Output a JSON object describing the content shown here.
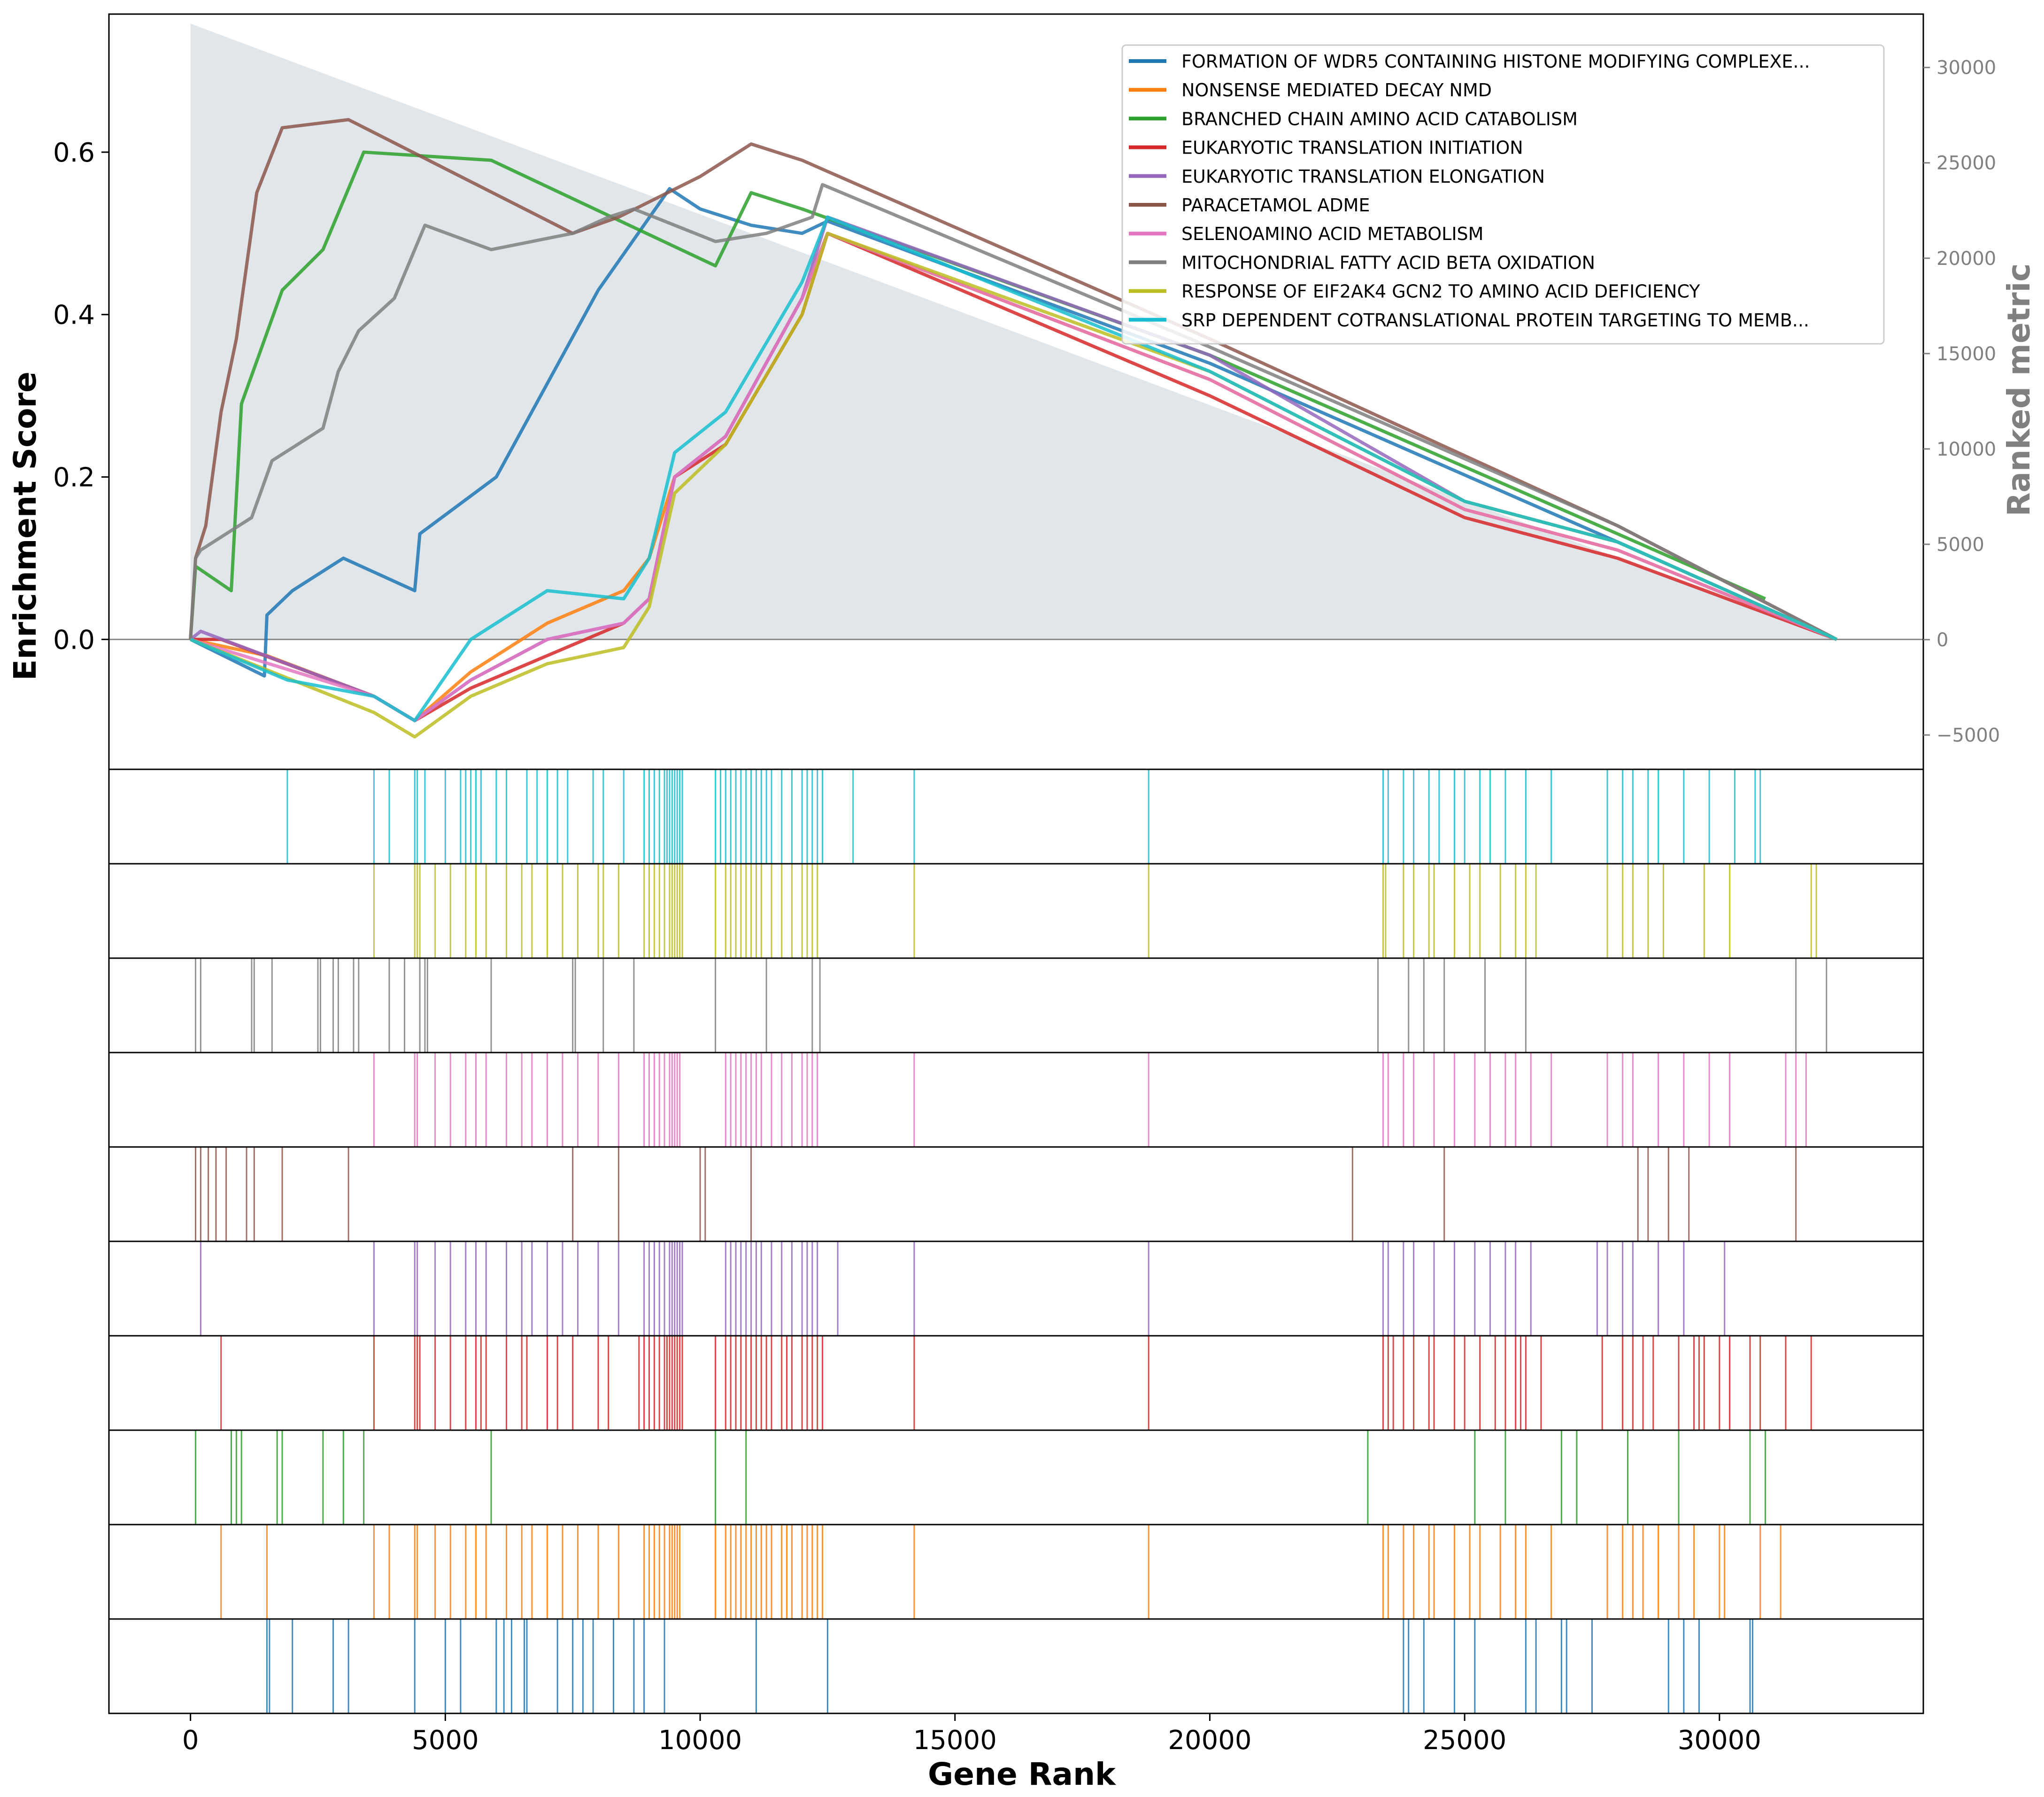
{
  "chart_data": {
    "type": "line",
    "xlabel": "Gene Rank",
    "ylabel": "Enrichment Score",
    "ylabel_right": "Ranked metric",
    "xlim": [
      -1600,
      34000
    ],
    "ylim": [
      -0.16,
      0.77
    ],
    "ylim_right": [
      -6800,
      32800
    ],
    "x_ticks": [
      0,
      5000,
      10000,
      15000,
      20000,
      25000,
      30000
    ],
    "x_tick_labels": [
      "0",
      "5000",
      "10000",
      "15000",
      "20000",
      "25000",
      "30000"
    ],
    "y_ticks": [
      0.0,
      0.2,
      0.4,
      0.6
    ],
    "y_tick_labels": [
      "0.0",
      "0.2",
      "0.4",
      "0.6"
    ],
    "y_right_ticks": [
      -5000,
      0,
      5000,
      10000,
      15000,
      20000,
      25000,
      30000
    ],
    "y_right_tick_labels": [
      "−5000",
      "0",
      "5000",
      "10000",
      "15000",
      "20000",
      "25000",
      "30000"
    ],
    "legend_position": "top-right",
    "ranked_metric": {
      "color": "#c9d1d8",
      "x": [
        0,
        32300
      ],
      "values": [
        32300,
        0
      ]
    },
    "series": [
      {
        "name": "FORMATION OF WDR5 CONTAINING HISTONE MODIFYING COMPLEXE...",
        "color": "#1f77b4",
        "es_x": [
          0,
          1450,
          1500,
          2000,
          3000,
          4400,
          4500,
          6000,
          8000,
          9400,
          10000,
          11000,
          12000,
          12500,
          20000,
          28000,
          32300
        ],
        "es_y": [
          0.0,
          -0.045,
          0.03,
          0.06,
          0.1,
          0.06,
          0.13,
          0.2,
          0.43,
          0.555,
          0.53,
          0.51,
          0.5,
          0.515,
          0.34,
          0.12,
          0.0
        ],
        "hits": [
          1500,
          1550,
          2000,
          2800,
          3100,
          4400,
          5000,
          5300,
          6000,
          6150,
          6300,
          6550,
          6600,
          7200,
          7500,
          7700,
          7900,
          8300,
          8700,
          8900,
          9300,
          11100,
          12500,
          23800,
          23900,
          24200,
          24800,
          25200,
          26200,
          26400,
          26900,
          27000,
          27500,
          29000,
          29300,
          29600,
          30600,
          30650
        ]
      },
      {
        "name": "NONSENSE MEDIATED DECAY NMD",
        "color": "#ff7f0e",
        "es_x": [
          0,
          1500,
          3600,
          4400,
          5500,
          7000,
          8500,
          9000,
          9500,
          10500,
          12000,
          12500,
          20000,
          25000,
          28000,
          32300
        ],
        "es_y": [
          0.0,
          -0.02,
          -0.07,
          -0.1,
          -0.04,
          0.02,
          0.06,
          0.1,
          0.2,
          0.25,
          0.42,
          0.5,
          0.32,
          0.16,
          0.11,
          0.0
        ],
        "hits": [
          600,
          1500,
          3600,
          3900,
          4400,
          4450,
          4800,
          5100,
          5400,
          5600,
          5800,
          6200,
          6500,
          6700,
          7000,
          7300,
          7600,
          8000,
          8400,
          8900,
          9000,
          9100,
          9200,
          9300,
          9400,
          9450,
          9500,
          9550,
          9600,
          10300,
          10500,
          10600,
          10700,
          10800,
          10900,
          11000,
          11100,
          11200,
          11300,
          11400,
          11600,
          11700,
          11800,
          12000,
          12100,
          12200,
          12300,
          12400,
          14200,
          18800,
          23400,
          23500,
          23800,
          24000,
          24300,
          24400,
          24800,
          25100,
          25300,
          25700,
          26000,
          26200,
          26700,
          27800,
          28100,
          28300,
          28500,
          28800,
          29200,
          29500,
          30000,
          30100,
          30800,
          31200
        ]
      },
      {
        "name": "BRANCHED CHAIN AMINO ACID CATABOLISM",
        "color": "#2ca02c",
        "es_x": [
          0,
          100,
          800,
          1000,
          1800,
          2600,
          3400,
          5900,
          10300,
          11000,
          12000,
          20000,
          28000,
          30900
        ],
        "es_y": [
          0.0,
          0.09,
          0.06,
          0.29,
          0.43,
          0.48,
          0.6,
          0.59,
          0.46,
          0.55,
          0.53,
          0.35,
          0.13,
          0.05
        ],
        "hits": [
          100,
          800,
          900,
          1000,
          1700,
          1800,
          2600,
          3000,
          3400,
          5900,
          10300,
          10900,
          23100,
          25200,
          25800,
          26900,
          27200,
          28200,
          29200,
          30600,
          30900
        ]
      },
      {
        "name": "EUKARYOTIC TRANSLATION INITIATION",
        "color": "#d62728",
        "es_x": [
          0,
          600,
          3600,
          4400,
          5500,
          7000,
          8500,
          9000,
          9500,
          10500,
          12000,
          12500,
          20000,
          25000,
          28000,
          32300
        ],
        "es_y": [
          0.0,
          0.0,
          -0.07,
          -0.1,
          -0.06,
          -0.02,
          0.02,
          0.05,
          0.2,
          0.24,
          0.4,
          0.5,
          0.3,
          0.15,
          0.1,
          0.0
        ],
        "hits": [
          600,
          3600,
          4400,
          4450,
          4500,
          4800,
          5100,
          5400,
          5600,
          5700,
          5800,
          6200,
          6500,
          6600,
          7000,
          7200,
          7500,
          8000,
          8200,
          8800,
          8900,
          9000,
          9100,
          9200,
          9300,
          9350,
          9400,
          9450,
          9500,
          9550,
          9600,
          9650,
          10300,
          10500,
          10600,
          10700,
          10800,
          10900,
          11000,
          11100,
          11200,
          11300,
          11400,
          11600,
          11700,
          11800,
          12000,
          12100,
          12200,
          12300,
          12400,
          14200,
          18800,
          23400,
          23500,
          23600,
          23800,
          24000,
          24300,
          24400,
          24800,
          25000,
          25300,
          25600,
          25800,
          26000,
          26100,
          26200,
          26500,
          27700,
          28100,
          28300,
          28500,
          28700,
          29200,
          29500,
          29600,
          29700,
          30000,
          30200,
          30600,
          30800,
          31300,
          31800
        ]
      },
      {
        "name": "EUKARYOTIC TRANSLATION ELONGATION",
        "color": "#9467bd",
        "es_x": [
          0,
          200,
          3600,
          4400,
          5500,
          7000,
          8500,
          9000,
          9500,
          10500,
          12000,
          12500,
          20000,
          25000,
          28000,
          32300
        ],
        "es_y": [
          0.0,
          0.01,
          -0.07,
          -0.1,
          -0.05,
          0.0,
          0.02,
          0.05,
          0.2,
          0.25,
          0.42,
          0.52,
          0.35,
          0.17,
          0.12,
          0.0
        ],
        "hits": [
          200,
          3600,
          4400,
          4450,
          4800,
          5100,
          5400,
          5600,
          5800,
          6200,
          6500,
          6700,
          7000,
          7300,
          7600,
          8000,
          8400,
          8900,
          9000,
          9100,
          9200,
          9300,
          9400,
          9450,
          9500,
          9550,
          9600,
          9650,
          10500,
          10600,
          10700,
          10800,
          10900,
          11000,
          11100,
          11200,
          11400,
          11600,
          11800,
          12000,
          12100,
          12200,
          12300,
          12700,
          14200,
          18800,
          23400,
          23500,
          23800,
          24000,
          24400,
          24800,
          25200,
          25500,
          25800,
          26000,
          26300,
          27600,
          27800,
          28100,
          28300,
          28800,
          29300,
          30100
        ]
      },
      {
        "name": "PARACETAMOL ADME",
        "color": "#8c564b",
        "es_x": [
          0,
          100,
          300,
          600,
          900,
          1300,
          1800,
          3100,
          7500,
          8400,
          10000,
          11000,
          12000,
          20000,
          28000,
          32300
        ],
        "es_y": [
          0.0,
          0.1,
          0.14,
          0.28,
          0.37,
          0.55,
          0.63,
          0.64,
          0.5,
          0.52,
          0.57,
          0.61,
          0.59,
          0.37,
          0.14,
          0.0
        ],
        "hits": [
          100,
          200,
          350,
          500,
          700,
          1100,
          1250,
          1800,
          3100,
          7500,
          8400,
          10000,
          10100,
          11000,
          22800,
          24600,
          28400,
          28600,
          29000,
          29400,
          31500
        ]
      },
      {
        "name": "SELENOAMINO ACID METABOLISM",
        "color": "#e377c2",
        "es_x": [
          0,
          3600,
          4400,
          5500,
          7000,
          8500,
          9000,
          9500,
          10500,
          12000,
          12500,
          20000,
          25000,
          28000,
          32300
        ],
        "es_y": [
          0.0,
          -0.07,
          -0.1,
          -0.05,
          0.0,
          0.02,
          0.05,
          0.2,
          0.25,
          0.42,
          0.5,
          0.32,
          0.16,
          0.11,
          0.0
        ],
        "hits": [
          3600,
          4400,
          4450,
          4800,
          5100,
          5400,
          5600,
          5800,
          6200,
          6500,
          6700,
          7000,
          7300,
          7600,
          8000,
          8400,
          8900,
          9000,
          9100,
          9200,
          9300,
          9400,
          9450,
          9500,
          9550,
          9600,
          10500,
          10600,
          10700,
          10800,
          10900,
          11000,
          11100,
          11200,
          11400,
          11600,
          11800,
          12000,
          12100,
          12200,
          12300,
          14200,
          18800,
          23400,
          23500,
          23800,
          24000,
          24400,
          24800,
          25200,
          25500,
          25800,
          26000,
          26300,
          26700,
          27800,
          28100,
          28300,
          28800,
          29300,
          29800,
          30200,
          31300,
          31500,
          31700
        ]
      },
      {
        "name": "MITOCHONDRIAL FATTY ACID BETA OXIDATION",
        "color": "#7f7f7f",
        "es_x": [
          0,
          100,
          200,
          1200,
          1600,
          2600,
          2900,
          3300,
          4000,
          4600,
          5900,
          7500,
          8200,
          8700,
          10300,
          11300,
          12200,
          12400,
          20000,
          28000,
          32300
        ],
        "es_y": [
          0.0,
          0.1,
          0.11,
          0.15,
          0.22,
          0.26,
          0.33,
          0.38,
          0.42,
          0.51,
          0.48,
          0.5,
          0.52,
          0.53,
          0.49,
          0.5,
          0.52,
          0.56,
          0.36,
          0.14,
          0.0
        ],
        "hits": [
          100,
          200,
          1200,
          1250,
          1600,
          2500,
          2550,
          2800,
          2900,
          3200,
          3300,
          3900,
          4200,
          4500,
          4600,
          4650,
          5900,
          7500,
          7550,
          8100,
          8700,
          10300,
          11300,
          12200,
          12350,
          23300,
          23900,
          24200,
          24600,
          25400,
          26200,
          31500,
          32100
        ]
      },
      {
        "name": "RESPONSE OF EIF2AK4 GCN2 TO AMINO ACID DEFICIENCY",
        "color": "#bcbd22",
        "es_x": [
          0,
          3600,
          4400,
          5500,
          7000,
          8500,
          9000,
          9500,
          10500,
          12000,
          12500,
          20000,
          25000,
          28000,
          32300
        ],
        "es_y": [
          0.0,
          -0.09,
          -0.12,
          -0.07,
          -0.03,
          -0.01,
          0.04,
          0.18,
          0.24,
          0.4,
          0.5,
          0.33,
          0.17,
          0.12,
          0.0
        ],
        "hits": [
          3600,
          4400,
          4450,
          4500,
          4800,
          5100,
          5400,
          5600,
          5800,
          6200,
          6500,
          6700,
          7000,
          7300,
          7600,
          8000,
          8100,
          8400,
          8900,
          9000,
          9100,
          9200,
          9300,
          9400,
          9450,
          9500,
          9550,
          9600,
          9650,
          10300,
          10500,
          10600,
          10700,
          10800,
          10900,
          11000,
          11100,
          11200,
          11400,
          11600,
          11800,
          12000,
          12100,
          12200,
          12300,
          14200,
          18800,
          23400,
          23450,
          23800,
          24000,
          24300,
          24400,
          24800,
          25100,
          25300,
          25700,
          26000,
          26200,
          26400,
          27800,
          28100,
          28300,
          28600,
          28900,
          29700,
          30200,
          31800,
          31900
        ]
      },
      {
        "name": "SRP DEPENDENT COTRANSLATIONAL PROTEIN TARGETING TO MEMB...",
        "color": "#17becf",
        "es_x": [
          0,
          1900,
          3600,
          4400,
          5500,
          7000,
          8500,
          9000,
          9500,
          10500,
          12000,
          12500,
          20000,
          25000,
          28000,
          32300
        ],
        "es_y": [
          0.0,
          -0.05,
          -0.07,
          -0.1,
          0.0,
          0.06,
          0.05,
          0.1,
          0.23,
          0.28,
          0.44,
          0.52,
          0.33,
          0.17,
          0.12,
          0.0
        ],
        "hits": [
          1900,
          3600,
          3900,
          4400,
          4450,
          4600,
          5000,
          5300,
          5400,
          5500,
          5600,
          5700,
          6000,
          6200,
          6600,
          6800,
          7000,
          7200,
          7400,
          7900,
          8100,
          8500,
          8900,
          9000,
          9100,
          9200,
          9300,
          9350,
          9400,
          9450,
          9500,
          9550,
          9600,
          9650,
          10300,
          10400,
          10500,
          10600,
          10700,
          10800,
          10900,
          11000,
          11100,
          11200,
          11300,
          11400,
          11600,
          11800,
          12000,
          12100,
          12200,
          12300,
          12400,
          13000,
          14200,
          18800,
          23400,
          23500,
          23800,
          24000,
          24300,
          24500,
          24800,
          25000,
          25300,
          25500,
          25800,
          26200,
          26700,
          27800,
          28100,
          28300,
          28600,
          28800,
          29300,
          29800,
          30300,
          30700,
          30800
        ]
      }
    ]
  }
}
